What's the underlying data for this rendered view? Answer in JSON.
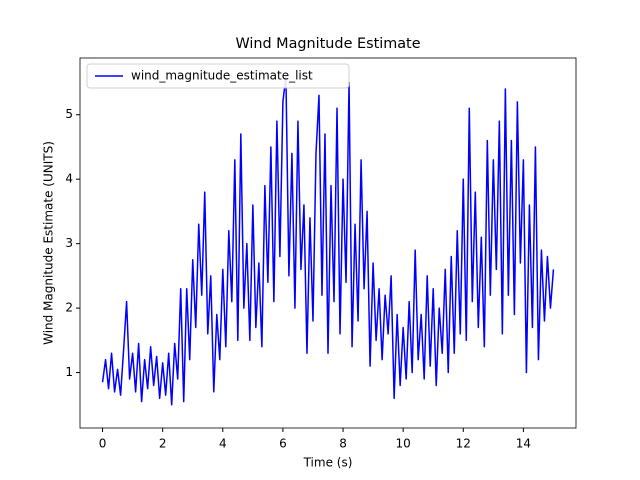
{
  "chart_data": {
    "type": "line",
    "title": "Wind Magnitude Estimate",
    "xlabel": "Time (s)",
    "ylabel": "Wind Magnitude Estimate (UNITS)",
    "legend": "upper left",
    "xlim": [
      -0.75,
      15.75
    ],
    "ylim": [
      0.14,
      5.88
    ],
    "xticks": [
      0,
      2,
      4,
      6,
      8,
      10,
      12,
      14
    ],
    "yticks": [
      1,
      2,
      3,
      4,
      5
    ],
    "x": [
      0.0,
      0.1,
      0.2,
      0.3,
      0.4,
      0.5,
      0.6,
      0.7,
      0.8,
      0.9,
      1.0,
      1.1,
      1.2,
      1.3,
      1.4,
      1.5,
      1.6,
      1.7,
      1.8,
      1.9,
      2.0,
      2.1,
      2.2,
      2.3,
      2.4,
      2.5,
      2.6,
      2.7,
      2.8,
      2.9,
      3.0,
      3.1,
      3.2,
      3.3,
      3.4,
      3.5,
      3.6,
      3.7,
      3.8,
      3.9,
      4.0,
      4.1,
      4.2,
      4.3,
      4.4,
      4.5,
      4.6,
      4.7,
      4.8,
      4.9,
      5.0,
      5.1,
      5.2,
      5.3,
      5.4,
      5.5,
      5.6,
      5.7,
      5.8,
      5.9,
      6.0,
      6.1,
      6.2,
      6.3,
      6.4,
      6.5,
      6.6,
      6.7,
      6.8,
      6.9,
      7.0,
      7.1,
      7.2,
      7.3,
      7.4,
      7.5,
      7.6,
      7.7,
      7.8,
      7.9,
      8.0,
      8.1,
      8.2,
      8.3,
      8.4,
      8.5,
      8.6,
      8.7,
      8.8,
      8.9,
      9.0,
      9.1,
      9.2,
      9.3,
      9.4,
      9.5,
      9.6,
      9.7,
      9.8,
      9.9,
      10.0,
      10.1,
      10.2,
      10.3,
      10.4,
      10.5,
      10.6,
      10.7,
      10.8,
      10.9,
      11.0,
      11.1,
      11.2,
      11.3,
      11.4,
      11.5,
      11.6,
      11.7,
      11.8,
      11.9,
      12.0,
      12.1,
      12.2,
      12.3,
      12.4,
      12.5,
      12.6,
      12.7,
      12.8,
      12.9,
      13.0,
      13.1,
      13.2,
      13.3,
      13.4,
      13.5,
      13.6,
      13.7,
      13.8,
      13.9,
      14.0,
      14.1,
      14.2,
      14.3,
      14.4,
      14.5,
      14.6,
      14.7,
      14.8,
      14.9,
      15.0
    ],
    "series": [
      {
        "name": "wind_magnitude_estimate_list",
        "color": "#0000ff",
        "values": [
          0.85,
          1.2,
          0.75,
          1.3,
          0.7,
          1.05,
          0.65,
          1.35,
          2.1,
          0.9,
          1.3,
          0.7,
          1.45,
          0.55,
          1.2,
          0.75,
          1.4,
          0.8,
          1.25,
          0.6,
          1.15,
          0.65,
          1.3,
          0.5,
          1.45,
          0.9,
          2.3,
          0.55,
          2.3,
          1.2,
          2.75,
          1.7,
          3.3,
          2.2,
          3.8,
          1.6,
          2.5,
          0.7,
          1.9,
          1.2,
          2.6,
          1.4,
          3.2,
          2.1,
          4.3,
          1.5,
          4.7,
          2.0,
          3.0,
          1.5,
          3.6,
          1.7,
          2.7,
          1.4,
          3.9,
          2.4,
          4.5,
          2.1,
          4.9,
          2.8,
          5.2,
          5.6,
          2.5,
          4.4,
          2.0,
          4.9,
          2.6,
          3.6,
          1.3,
          3.4,
          1.8,
          4.4,
          5.3,
          2.2,
          4.7,
          1.3,
          3.9,
          2.1,
          5.1,
          1.6,
          4.0,
          2.4,
          5.5,
          1.4,
          3.3,
          1.8,
          4.3,
          2.3,
          3.5,
          1.1,
          2.7,
          1.5,
          2.3,
          1.2,
          2.2,
          1.6,
          2.5,
          0.6,
          1.9,
          0.8,
          1.7,
          0.9,
          2.1,
          1.0,
          2.9,
          1.2,
          1.9,
          0.9,
          2.5,
          1.1,
          2.3,
          0.8,
          2.0,
          1.3,
          2.6,
          1.0,
          2.8,
          1.3,
          3.2,
          1.6,
          4.0,
          1.5,
          5.1,
          2.1,
          3.8,
          1.7,
          3.1,
          1.4,
          4.6,
          2.2,
          4.3,
          2.6,
          4.9,
          1.6,
          5.4,
          2.2,
          4.6,
          1.9,
          5.2,
          2.7,
          4.3,
          1.0,
          3.6,
          1.7,
          4.5,
          1.2,
          2.9,
          1.8,
          2.8,
          2.0,
          2.6
        ]
      }
    ]
  }
}
